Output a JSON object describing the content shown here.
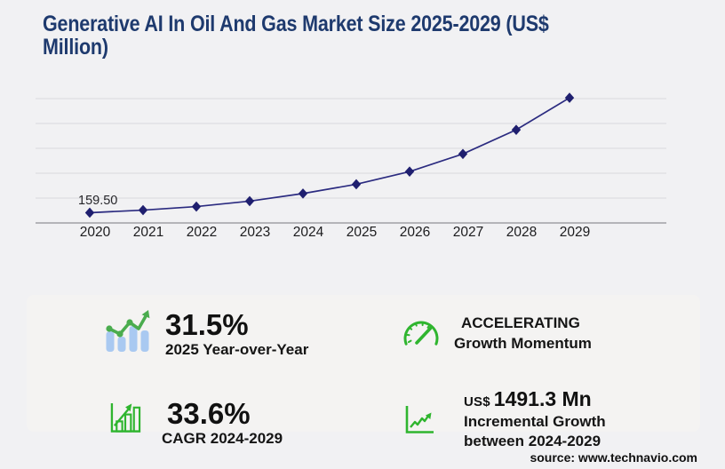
{
  "header": {
    "title_line1": "Generative AI In Oil And Gas Market Size 2025-2029 (US$",
    "title_line2": "Million)"
  },
  "chart_data": {
    "type": "line",
    "title": "Generative AI In Oil And Gas Market Size 2025-2029 (US$ Million)",
    "categories": [
      "2020",
      "2021",
      "2022",
      "2023",
      "2024",
      "2025",
      "2026",
      "2027",
      "2028",
      "2029"
    ],
    "series": [
      {
        "name": "market-size-usd-million",
        "values": [
          159.5,
          200,
          255,
          340,
          458,
          602,
          800,
          1075,
          1450,
          1949
        ]
      }
    ],
    "annotations": [
      {
        "x": "2020",
        "text": "159.50"
      }
    ],
    "xlabel": "",
    "ylabel": "",
    "ylim": [
      0,
      2100
    ],
    "ytick_labels": "none",
    "gridlines": "horizontal",
    "legend": "none",
    "line_color": "#2b2b80",
    "marker": "diamond",
    "marker_color": "#1f1f6f",
    "grid_color": "#d9d9dc",
    "axis_color": "#a0a0a6",
    "tick_label_color": "#1c1c1e"
  },
  "stats": {
    "yoy": {
      "icon": "bar-line-growth-icon",
      "value": "31.5%",
      "label": "2025 Year-over-Year"
    },
    "momentum": {
      "icon": "speedometer-icon",
      "line1": "ACCELERATING",
      "line2": "Growth Momentum"
    },
    "cagr": {
      "icon": "growth-bars-icon",
      "value": "33.6%",
      "label": "CAGR 2024-2029"
    },
    "incremental": {
      "icon": "trend-arrow-icon",
      "currency": "US$",
      "value": "1491.3 Mn",
      "line1": "Incremental Growth",
      "line2": "between 2024-2029"
    }
  },
  "footer": {
    "source": "source: www.technavio.com"
  },
  "colors": {
    "background": "#f1f1f3",
    "panel": "#f4f3f2",
    "title_navy": "#1e3a6e",
    "line_navy": "#2b2b80",
    "accent_green": "#2fb52f",
    "soft_green": "#4aac4e",
    "bar_blue": "#a9c9f1",
    "text_dark": "#111111"
  }
}
